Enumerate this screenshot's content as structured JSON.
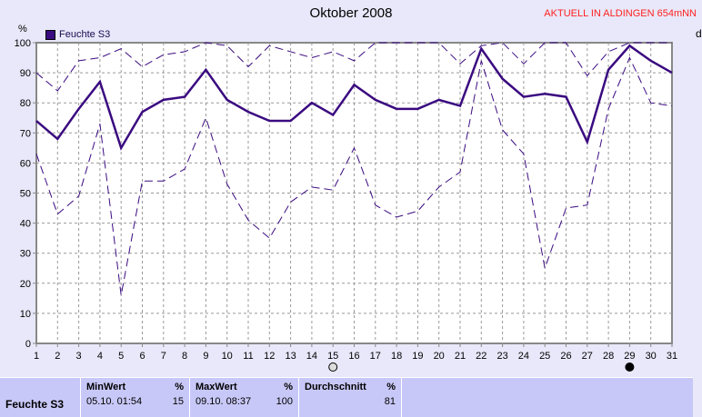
{
  "header": {
    "title": "Oktober 2008",
    "banner": "AKTUELL IN ALDINGEN 654mNN",
    "unit": "%",
    "right_label": "d"
  },
  "legend": {
    "label": "Feuchte S3",
    "color": "#3a0a80"
  },
  "chart_data": {
    "type": "line",
    "title": "Oktober 2008",
    "ylabel": "%",
    "ylim": [
      0,
      100
    ],
    "yticks": [
      0,
      10,
      20,
      30,
      40,
      50,
      60,
      70,
      80,
      90,
      100
    ],
    "x": [
      1,
      2,
      3,
      4,
      5,
      6,
      7,
      8,
      9,
      10,
      11,
      12,
      13,
      14,
      15,
      16,
      17,
      18,
      19,
      20,
      21,
      22,
      23,
      24,
      25,
      26,
      27,
      28,
      29,
      30,
      31
    ],
    "grid": true,
    "legend_position": "top-left",
    "series": [
      {
        "name": "Feuchte S3",
        "style": "solid-thick",
        "values": [
          74,
          68,
          78,
          87,
          65,
          77,
          81,
          82,
          91,
          81,
          77,
          74,
          74,
          80,
          76,
          86,
          81,
          78,
          78,
          81,
          79,
          98,
          88,
          82,
          83,
          82,
          67,
          91,
          99,
          94,
          90
        ]
      },
      {
        "style": "dashed-max",
        "values": [
          90,
          84,
          94,
          95,
          98,
          92,
          96,
          97,
          100,
          99,
          92,
          99,
          97,
          95,
          97,
          94,
          100,
          100,
          100,
          100,
          93,
          99,
          100,
          93,
          100,
          100,
          89,
          97,
          100,
          100,
          100
        ]
      },
      {
        "style": "dashed-min",
        "values": [
          63,
          43,
          49,
          73,
          16,
          54,
          54,
          58,
          75,
          53,
          41,
          35,
          47,
          52,
          51,
          65,
          46,
          42,
          44,
          52,
          57,
          94,
          71,
          63,
          25,
          45,
          46,
          78,
          95,
          80,
          79
        ]
      }
    ],
    "markers": [
      {
        "day": 15,
        "icon": "full-moon-icon"
      },
      {
        "day": 29,
        "icon": "new-moon-icon"
      }
    ]
  },
  "table": {
    "series_label": "Feuchte S3",
    "min": {
      "label": "MinWert",
      "unit": "%",
      "time": "05.10.  01:54",
      "value": "15"
    },
    "max": {
      "label": "MaxWert",
      "unit": "%",
      "time": "09.10.  08:37",
      "value": "100"
    },
    "avg": {
      "label": "Durchschnitt",
      "unit": "%",
      "value": "81"
    }
  }
}
